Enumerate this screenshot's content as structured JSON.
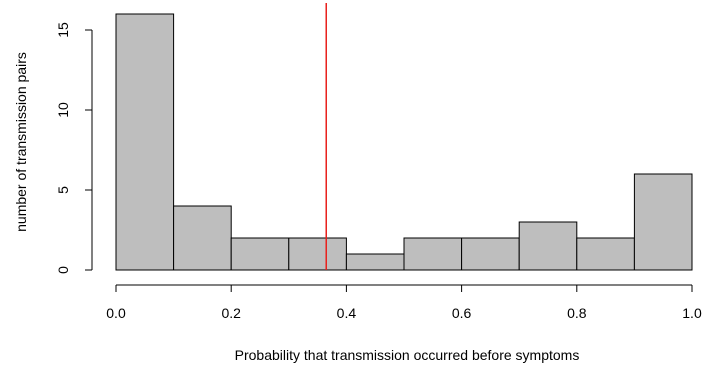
{
  "chart_data": {
    "type": "bar",
    "subtype": "histogram",
    "bins": [
      {
        "x0": 0.0,
        "x1": 0.1,
        "count": 16
      },
      {
        "x0": 0.1,
        "x1": 0.2,
        "count": 4
      },
      {
        "x0": 0.2,
        "x1": 0.3,
        "count": 2
      },
      {
        "x0": 0.3,
        "x1": 0.4,
        "count": 2
      },
      {
        "x0": 0.4,
        "x1": 0.5,
        "count": 1
      },
      {
        "x0": 0.5,
        "x1": 0.6,
        "count": 2
      },
      {
        "x0": 0.6,
        "x1": 0.7,
        "count": 2
      },
      {
        "x0": 0.7,
        "x1": 0.8,
        "count": 3
      },
      {
        "x0": 0.8,
        "x1": 0.9,
        "count": 2
      },
      {
        "x0": 0.9,
        "x1": 1.0,
        "count": 6
      }
    ],
    "xlabel": "Probability that transmission occurred before symptoms",
    "ylabel": "number of transmission pairs",
    "xlim": [
      0.0,
      1.0
    ],
    "ylim": [
      0,
      16
    ],
    "x_ticks": [
      0.0,
      0.2,
      0.4,
      0.6,
      0.8,
      1.0
    ],
    "x_tick_labels": [
      "0.0",
      "0.2",
      "0.4",
      "0.6",
      "0.8",
      "1.0"
    ],
    "y_ticks": [
      0,
      5,
      10,
      15
    ],
    "y_tick_labels": [
      "0",
      "5",
      "10",
      "15"
    ],
    "vertical_line": {
      "x": 0.365,
      "color": "#e8201c"
    },
    "bar_color": "#bebebe",
    "grid": false
  }
}
